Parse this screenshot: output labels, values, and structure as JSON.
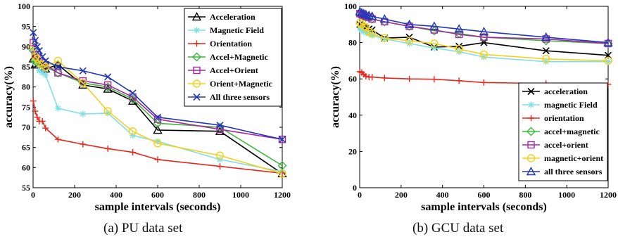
{
  "chart_data": [
    {
      "type": "line",
      "caption": "(a)  PU data set",
      "xlabel": "sample intervals (seconds)",
      "ylabel": "accuracy(%)",
      "xlim": [
        0,
        1200
      ],
      "ylim": [
        55,
        100
      ],
      "xticks": [
        0,
        200,
        400,
        600,
        800,
        1000,
        1200
      ],
      "yticks": [
        55,
        60,
        65,
        70,
        75,
        80,
        85,
        90,
        95,
        100
      ],
      "grid": false,
      "legend_position": "top-right",
      "x": [
        1,
        10,
        20,
        30,
        45,
        60,
        120,
        240,
        360,
        480,
        600,
        900,
        1200
      ],
      "series": [
        {
          "name": "Acceleration",
          "color": "#000000",
          "marker": "triangle",
          "values": [
            87,
            85.5,
            86.5,
            86,
            85,
            84.5,
            85.5,
            80.5,
            79.5,
            76.5,
            69.3,
            69,
            58.5
          ]
        },
        {
          "name": "Magnetic Field",
          "color": "#80dfe5",
          "marker": "asterisk",
          "values": [
            89,
            86,
            86,
            84,
            83.5,
            83,
            74.7,
            73.3,
            73.5,
            68,
            66.5,
            62,
            59
          ]
        },
        {
          "name": "Orientation",
          "color": "#e8261c",
          "marker": "plus",
          "values": [
            76.5,
            74,
            72.5,
            71.5,
            71.5,
            69.8,
            67,
            65.8,
            64.7,
            63.8,
            62,
            60.3,
            58.6
          ]
        },
        {
          "name": "Accel+Magnetic",
          "color": "#3cb83c",
          "marker": "diamond",
          "values": [
            89,
            86.5,
            86.5,
            86,
            85.5,
            85,
            83.5,
            81,
            80,
            77,
            71,
            70,
            60.5
          ]
        },
        {
          "name": "Accel+Orient",
          "color": "#a626a4",
          "marker": "square",
          "values": [
            91,
            88,
            88,
            87,
            86,
            85.5,
            83.5,
            81.5,
            80.5,
            77.5,
            72,
            69.5,
            67
          ]
        },
        {
          "name": "Orient+Magnetic",
          "color": "#f0d21c",
          "marker": "circle",
          "values": [
            90,
            87.5,
            87,
            86,
            85.5,
            85,
            86.5,
            81,
            74,
            69,
            66,
            63,
            58.5
          ]
        },
        {
          "name": "All three sensors",
          "color": "#2238b8",
          "marker": "x",
          "values": [
            93.5,
            91.5,
            90,
            89,
            87.5,
            86.5,
            85,
            84,
            82.5,
            78.5,
            72.5,
            70.5,
            67
          ]
        }
      ]
    },
    {
      "type": "line",
      "caption": "(b)  GCU data set",
      "xlabel": "sample intervals (seconds)",
      "ylabel": "accuracy(%)",
      "xlim": [
        0,
        1200
      ],
      "ylim": [
        0,
        100
      ],
      "xticks": [
        0,
        200,
        400,
        600,
        800,
        1000,
        1200
      ],
      "yticks": [
        0,
        20,
        40,
        60,
        80,
        100
      ],
      "grid": false,
      "legend_position": "bottom-right",
      "x": [
        1,
        10,
        20,
        30,
        45,
        60,
        120,
        240,
        360,
        480,
        600,
        900,
        1200
      ],
      "series": [
        {
          "name": "acceleration",
          "color": "#000000",
          "marker": "x",
          "values": [
            90,
            89,
            88.5,
            88,
            87.5,
            87,
            82.5,
            83,
            77.5,
            78,
            80,
            75.5,
            73
          ]
        },
        {
          "name": "magnetic Field",
          "color": "#80dfe5",
          "marker": "asterisk",
          "values": [
            88,
            87,
            86,
            85.5,
            85,
            84,
            82,
            79.5,
            77,
            75,
            72,
            69.5,
            69.5
          ]
        },
        {
          "name": "orientation",
          "color": "#e8261c",
          "marker": "plus",
          "values": [
            64,
            63.5,
            62.5,
            61.5,
            61,
            61,
            60.5,
            60,
            59.8,
            59,
            58,
            57.5,
            57
          ]
        },
        {
          "name": "accel+magnetic",
          "color": "#3cb83c",
          "marker": "diamond",
          "values": [
            96,
            95,
            94.5,
            94,
            93.5,
            93,
            91.5,
            89,
            86.5,
            85,
            83,
            81,
            79.5
          ]
        },
        {
          "name": "accel+orient",
          "color": "#a626a4",
          "marker": "square",
          "values": [
            96,
            95.5,
            95,
            94.5,
            94,
            93,
            91.5,
            89,
            87,
            84.5,
            83,
            82,
            79.5
          ]
        },
        {
          "name": "magnetic+orient",
          "color": "#f0d21c",
          "marker": "circle",
          "values": [
            91,
            90,
            89,
            88.5,
            86,
            85,
            82.5,
            81,
            79.5,
            76.5,
            73.5,
            71,
            70
          ]
        },
        {
          "name": "all three sensors",
          "color": "#2238b8",
          "marker": "triangle",
          "values": [
            97,
            96.5,
            96,
            95.5,
            95,
            94.5,
            93,
            90,
            89,
            87.5,
            86,
            83,
            80
          ]
        }
      ]
    }
  ]
}
